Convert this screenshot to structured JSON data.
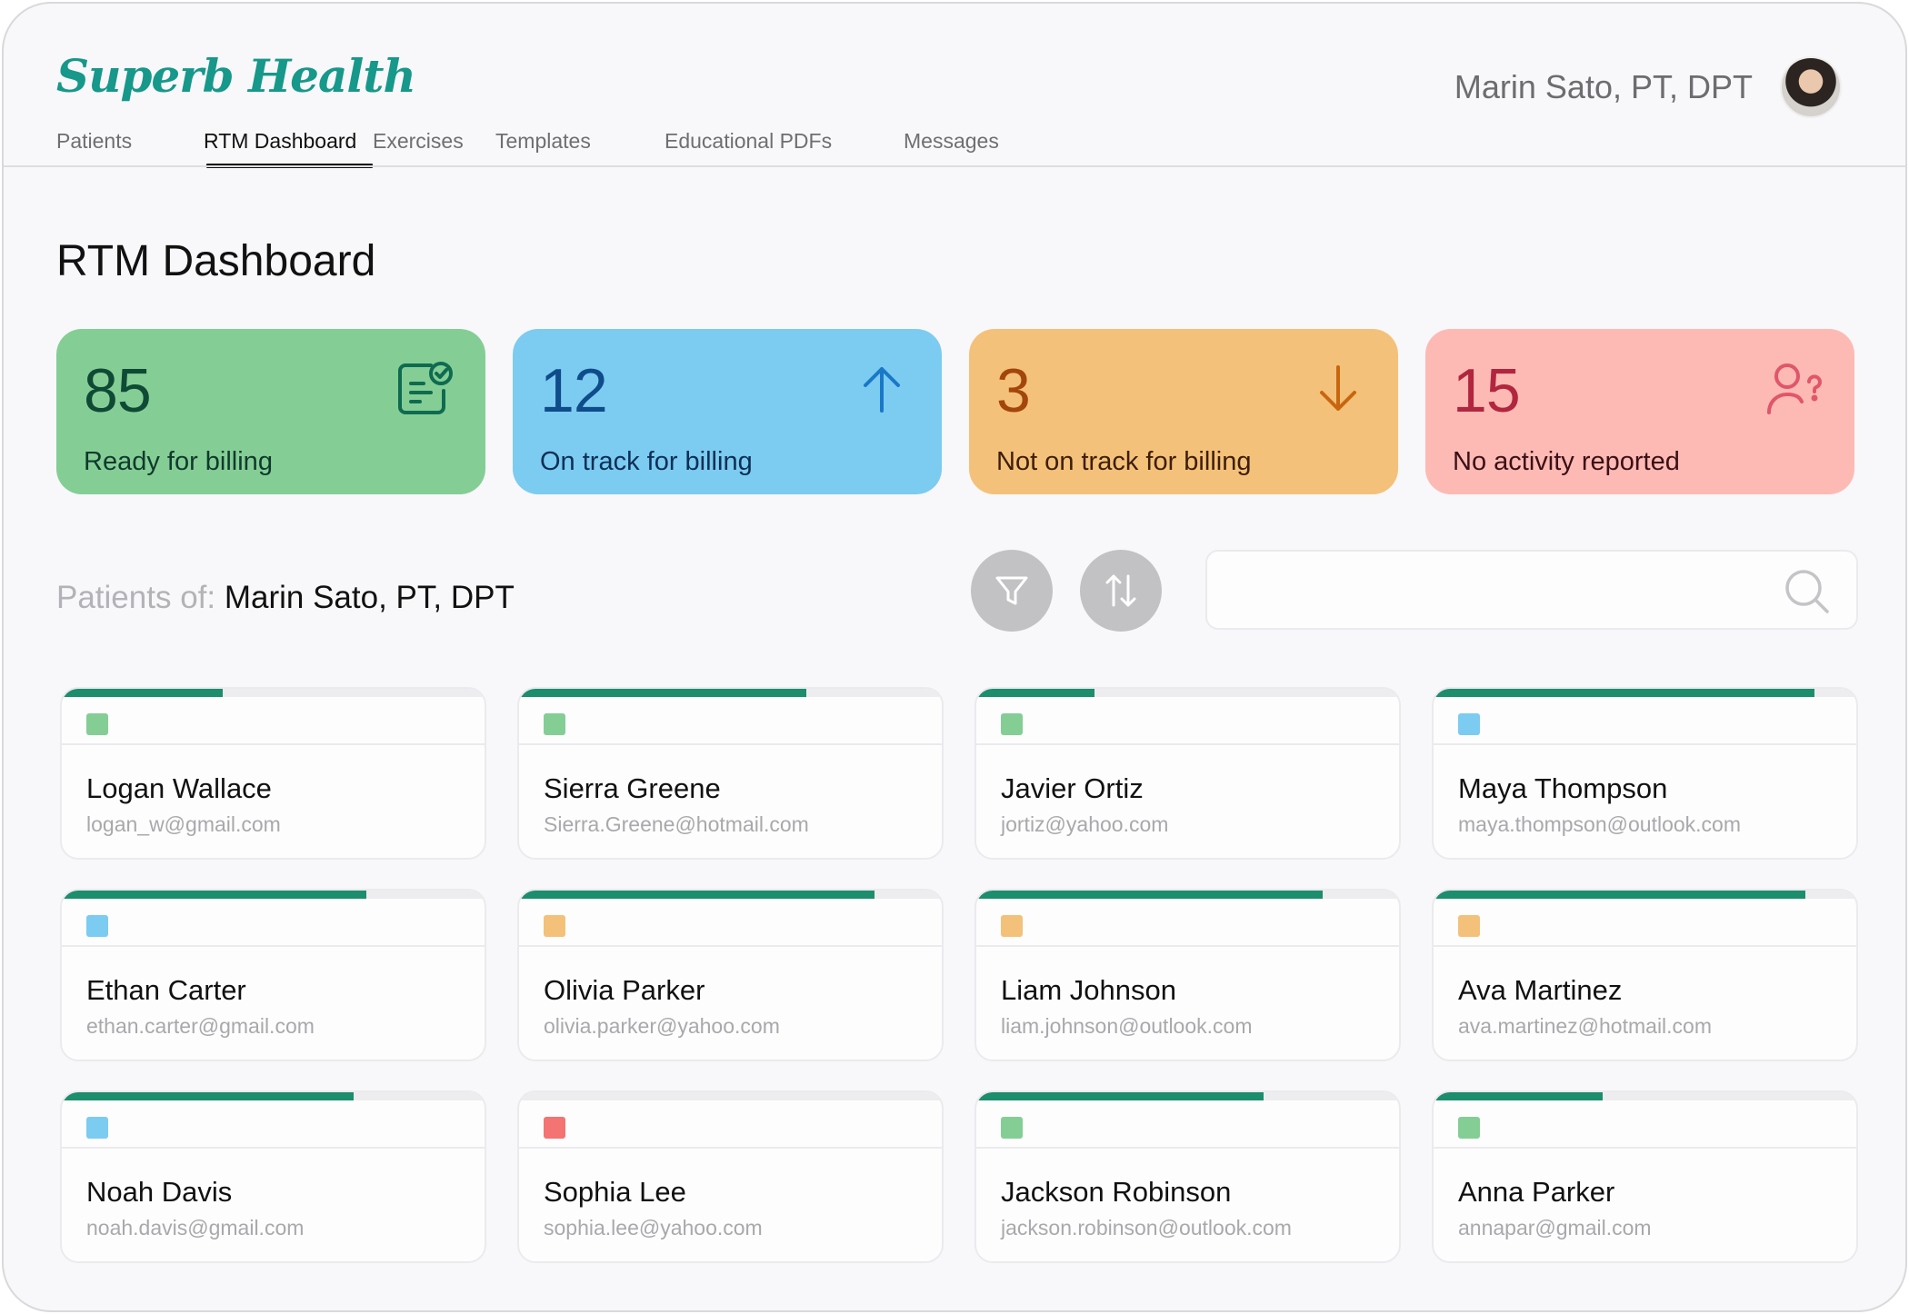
{
  "app": {
    "brand": "Superb Health"
  },
  "user": {
    "name": "Marin Sato, PT, DPT"
  },
  "nav": {
    "items": [
      {
        "label": "Patients",
        "active": false
      },
      {
        "label": "RTM Dashboard",
        "active": true
      },
      {
        "label": "Exercises",
        "active": false
      },
      {
        "label": "Templates",
        "active": false
      },
      {
        "label": "Educational PDFs",
        "active": false
      },
      {
        "label": "Messages",
        "active": false
      }
    ]
  },
  "page": {
    "title": "RTM Dashboard"
  },
  "stats": [
    {
      "value": "85",
      "label": "Ready for billing",
      "icon": "clipboard-check-icon",
      "color": "#84ce96"
    },
    {
      "value": "12",
      "label": "On track for billing",
      "icon": "arrow-up-icon",
      "color": "#7ccbf1"
    },
    {
      "value": "3",
      "label": "Not on track for billing",
      "icon": "arrow-down-icon",
      "color": "#f4c17a"
    },
    {
      "value": "15",
      "label": "No activity reported",
      "icon": "user-question-icon",
      "color": "#fdbab4"
    }
  ],
  "patients_of": {
    "label": "Patients of:",
    "name": "Marin Sato, PT, DPT"
  },
  "toolbar": {
    "filter_icon": "filter-icon",
    "sort_icon": "sort-icon",
    "search_icon": "search-icon",
    "search_value": ""
  },
  "status_colors": {
    "green": "#84ce96",
    "blue": "#7ccbf1",
    "orange": "#f4c17a",
    "red": "#f47373"
  },
  "patients": [
    {
      "name": "Logan Wallace",
      "email": "logan_w@gmail.com",
      "status": "green",
      "progress": 0.38
    },
    {
      "name": "Sierra Greene",
      "email": "Sierra.Greene@hotmail.com",
      "status": "green",
      "progress": 0.68
    },
    {
      "name": "Javier Ortiz",
      "email": "jortiz@yahoo.com",
      "status": "green",
      "progress": 0.28
    },
    {
      "name": "Maya Thompson",
      "email": "maya.thompson@outlook.com",
      "status": "blue",
      "progress": 0.9
    },
    {
      "name": "Ethan Carter",
      "email": "ethan.carter@gmail.com",
      "status": "blue",
      "progress": 0.72
    },
    {
      "name": "Olivia Parker",
      "email": "olivia.parker@yahoo.com",
      "status": "orange",
      "progress": 0.84
    },
    {
      "name": "Liam Johnson",
      "email": "liam.johnson@outlook.com",
      "status": "orange",
      "progress": 0.82
    },
    {
      "name": "Ava Martinez",
      "email": "ava.martinez@hotmail.com",
      "status": "orange",
      "progress": 0.88
    },
    {
      "name": "Noah Davis",
      "email": "noah.davis@gmail.com",
      "status": "blue",
      "progress": 0.69
    },
    {
      "name": "Sophia Lee",
      "email": "sophia.lee@yahoo.com",
      "status": "red",
      "progress": 0
    },
    {
      "name": "Jackson Robinson",
      "email": "jackson.robinson@outlook.com",
      "status": "green",
      "progress": 0.68
    },
    {
      "name": "Anna Parker",
      "email": "annapar@gmail.com",
      "status": "green",
      "progress": 0.4
    }
  ]
}
